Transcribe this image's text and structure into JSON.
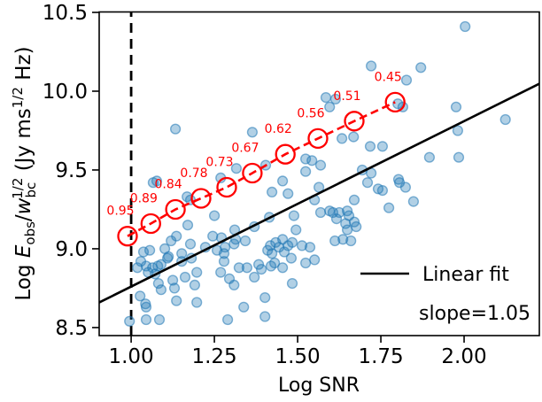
{
  "figure": {
    "xlabel": "Log SNR",
    "ylabel_parts": {
      "log": "Log ",
      "E": "E",
      "obs": "obs",
      "slash": "/",
      "w": "w",
      "bc": "bc",
      "half1": "1/2",
      "jyms": " (Jy ms",
      "half2": "1/2",
      "hz": " Hz)"
    },
    "legend": {
      "linear_fit": "Linear fit"
    },
    "slope_text": "slope=1.05",
    "colors": {
      "scatter_fill": "#1f77b4",
      "fit_line": "#000000",
      "threshold_line": "#000000",
      "completeness": "#ff0000",
      "background": "#ffffff"
    }
  },
  "chart_data": {
    "type": "scatter",
    "title": "",
    "xlabel": "Log SNR",
    "ylabel": "Log E_obs/w_bc^(1/2) (Jy ms^(1/2) Hz)",
    "xlim": [
      0.904,
      2.226
    ],
    "ylim": [
      8.449,
      10.5
    ],
    "grid": false,
    "legend_position": "lower right",
    "x_tick_values": [
      1.0,
      1.25,
      1.5,
      1.75,
      2.0
    ],
    "x_tick_labels": [
      "1.00",
      "1.25",
      "1.50",
      "1.75",
      "2.00"
    ],
    "y_tick_values": [
      8.5,
      9.0,
      9.5,
      10.0,
      10.5
    ],
    "y_tick_labels": [
      "8.5",
      "9.0",
      "9.5",
      "10.0",
      "10.5"
    ],
    "threshold_line": {
      "x": 1.0,
      "style": "dashed",
      "color": "#000000"
    },
    "linear_fit": {
      "slope": 1.05,
      "intercept": 7.71,
      "x_range": [
        0.904,
        2.226
      ],
      "label": "Linear fit",
      "annotation": "slope=1.05",
      "color": "#000000"
    },
    "completeness_markers": {
      "color": "#ff0000",
      "style": "dashed line with open circle markers",
      "points": [
        {
          "x": 0.989,
          "y": 9.08,
          "label": "0.95"
        },
        {
          "x": 1.059,
          "y": 9.16,
          "label": "0.89"
        },
        {
          "x": 1.133,
          "y": 9.25,
          "label": "0.84"
        },
        {
          "x": 1.21,
          "y": 9.32,
          "label": "0.78"
        },
        {
          "x": 1.287,
          "y": 9.39,
          "label": "0.73"
        },
        {
          "x": 1.364,
          "y": 9.48,
          "label": "0.67"
        },
        {
          "x": 1.463,
          "y": 9.6,
          "label": "0.62"
        },
        {
          "x": 1.561,
          "y": 9.7,
          "label": "0.56"
        },
        {
          "x": 1.67,
          "y": 9.81,
          "label": "0.51"
        },
        {
          "x": 1.793,
          "y": 9.93,
          "label": "0.45"
        }
      ]
    },
    "scatter_points": [
      [
        1.133,
        9.76
      ],
      [
        1.364,
        9.74
      ],
      [
        2.003,
        10.41
      ],
      [
        1.721,
        10.16
      ],
      [
        1.87,
        10.15
      ],
      [
        1.827,
        10.07
      ],
      [
        1.585,
        9.96
      ],
      [
        1.614,
        9.95
      ],
      [
        1.596,
        9.9
      ],
      [
        1.801,
        9.92
      ],
      [
        1.816,
        9.9
      ],
      [
        2.124,
        9.82
      ],
      [
        1.976,
        9.9
      ],
      [
        1.981,
        9.75
      ],
      [
        1.066,
        9.42
      ],
      [
        1.077,
        9.43
      ],
      [
        1.168,
        9.33
      ],
      [
        1.178,
        9.31
      ],
      [
        1.269,
        9.45
      ],
      [
        1.316,
        9.51
      ],
      [
        1.25,
        9.21
      ],
      [
        1.17,
        9.15
      ],
      [
        1.404,
        9.53
      ],
      [
        1.455,
        9.43
      ],
      [
        1.423,
        9.36
      ],
      [
        1.471,
        9.35
      ],
      [
        1.524,
        9.49
      ],
      [
        1.524,
        9.57
      ],
      [
        1.543,
        9.56
      ],
      [
        1.489,
        9.21
      ],
      [
        1.415,
        9.2
      ],
      [
        1.37,
        9.14
      ],
      [
        1.495,
        9.12
      ],
      [
        1.311,
        9.12
      ],
      [
        1.564,
        9.39
      ],
      [
        1.551,
        9.31
      ],
      [
        1.633,
        9.7
      ],
      [
        1.668,
        9.71
      ],
      [
        1.718,
        9.65
      ],
      [
        1.755,
        9.65
      ],
      [
        1.896,
        9.58
      ],
      [
        1.984,
        9.58
      ],
      [
        1.694,
        9.5
      ],
      [
        1.721,
        9.48
      ],
      [
        1.71,
        9.42
      ],
      [
        1.803,
        9.44
      ],
      [
        1.806,
        9.42
      ],
      [
        1.742,
        9.38
      ],
      [
        1.755,
        9.37
      ],
      [
        1.824,
        9.39
      ],
      [
        1.67,
        9.31
      ],
      [
        1.774,
        9.26
      ],
      [
        1.848,
        9.3
      ],
      [
        1.569,
        9.53
      ],
      [
        1.569,
        9.23
      ],
      [
        1.596,
        9.24
      ],
      [
        1.606,
        9.23
      ],
      [
        1.625,
        9.23
      ],
      [
        1.649,
        9.24
      ],
      [
        1.654,
        9.21
      ],
      [
        1.617,
        9.19
      ],
      [
        1.644,
        9.16
      ],
      [
        1.67,
        9.17
      ],
      [
        1.649,
        9.12
      ],
      [
        1.676,
        9.14
      ],
      [
        1.136,
        9.08
      ],
      [
        1.245,
        9.08
      ],
      [
        1.271,
        9.07
      ],
      [
        1.178,
        9.03
      ],
      [
        1.12,
        9.05
      ],
      [
        1.037,
        8.98
      ],
      [
        1.056,
        8.99
      ],
      [
        1.101,
        9.0
      ],
      [
        1.112,
        8.95
      ],
      [
        1.029,
        8.92
      ],
      [
        1.019,
        8.88
      ],
      [
        1.045,
        8.89
      ],
      [
        1.064,
        8.88
      ],
      [
        1.08,
        8.89
      ],
      [
        1.09,
        8.9
      ],
      [
        1.051,
        8.85
      ],
      [
        1.072,
        8.84
      ],
      [
        1.109,
        8.94
      ],
      [
        1.152,
        8.97
      ],
      [
        1.152,
        8.92
      ],
      [
        1.162,
        8.82
      ],
      [
        1.082,
        8.78
      ],
      [
        1.09,
        8.74
      ],
      [
        1.027,
        8.7
      ],
      [
        1.043,
        8.65
      ],
      [
        1.045,
        8.63
      ],
      [
        0.995,
        8.54
      ],
      [
        1.045,
        8.55
      ],
      [
        1.085,
        8.55
      ],
      [
        1.125,
        8.8
      ],
      [
        1.13,
        8.75
      ],
      [
        1.136,
        8.67
      ],
      [
        1.181,
        8.94
      ],
      [
        1.197,
        8.85
      ],
      [
        1.191,
        8.77
      ],
      [
        1.197,
        8.66
      ],
      [
        1.223,
        9.01
      ],
      [
        1.258,
        8.99
      ],
      [
        1.279,
        8.97
      ],
      [
        1.282,
        9.01
      ],
      [
        1.309,
        9.03
      ],
      [
        1.314,
        9.06
      ],
      [
        1.343,
        9.05
      ],
      [
        1.279,
        8.92
      ],
      [
        1.269,
        8.85
      ],
      [
        1.295,
        8.81
      ],
      [
        1.309,
        8.77
      ],
      [
        1.324,
        8.88
      ],
      [
        1.348,
        8.88
      ],
      [
        1.383,
        8.9
      ],
      [
        1.391,
        8.87
      ],
      [
        1.37,
        8.82
      ],
      [
        1.42,
        8.89
      ],
      [
        1.431,
        8.91
      ],
      [
        1.455,
        8.88
      ],
      [
        1.481,
        8.94
      ],
      [
        1.484,
        8.78
      ],
      [
        1.402,
        8.69
      ],
      [
        1.444,
        9.01
      ],
      [
        1.46,
        8.98
      ],
      [
        1.471,
        9.02
      ],
      [
        1.513,
        9.02
      ],
      [
        1.484,
        9.04
      ],
      [
        1.455,
        9.06
      ],
      [
        1.434,
        9.04
      ],
      [
        1.418,
        9.02
      ],
      [
        1.41,
        8.99
      ],
      [
        1.423,
        8.97
      ],
      [
        1.524,
        8.91
      ],
      [
        1.537,
        9.01
      ],
      [
        1.551,
        8.93
      ],
      [
        1.338,
        8.63
      ],
      [
        1.402,
        8.57
      ],
      [
        1.29,
        8.55
      ],
      [
        1.612,
        9.05
      ],
      [
        1.636,
        9.06
      ],
      [
        1.66,
        9.05
      ]
    ]
  }
}
